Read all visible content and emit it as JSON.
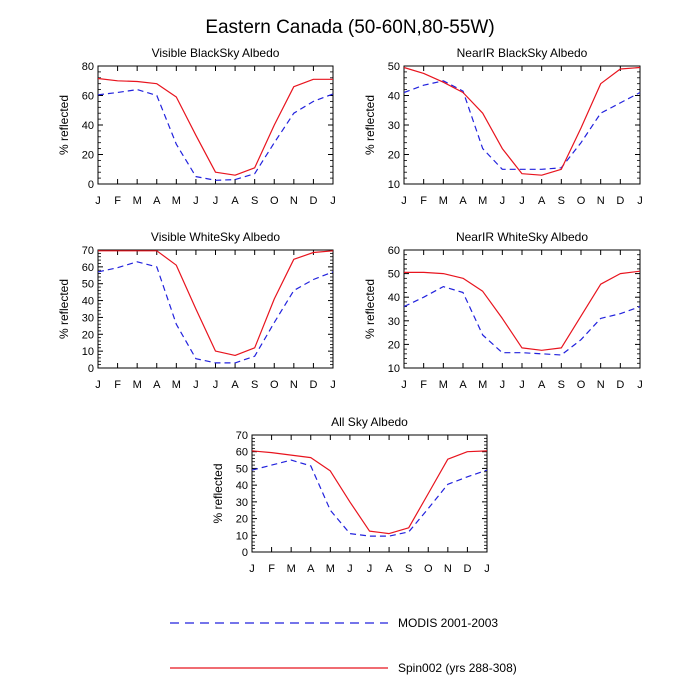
{
  "figure": {
    "title": "Eastern Canada (50-60N,80-55W)"
  },
  "legend": {
    "entries": [
      {
        "label": "MODIS 2001-2003",
        "color": "#2222dd",
        "dashed": true
      },
      {
        "label": "Spin002 (yrs 288-308)",
        "color": "#e8141e",
        "dashed": false
      }
    ]
  },
  "chart_data": [
    {
      "type": "line",
      "title": "Visible BlackSky Albedo",
      "ylabel": "% reflected",
      "x": [
        "J",
        "F",
        "M",
        "A",
        "M",
        "J",
        "J",
        "A",
        "S",
        "O",
        "N",
        "D",
        "J"
      ],
      "ylim": [
        0,
        80
      ],
      "yticks": [
        0,
        20,
        40,
        60,
        80
      ],
      "series": [
        {
          "name": "MODIS 2001-2003",
          "values": [
            60.5,
            62,
            64,
            60,
            27,
            5,
            2.5,
            3,
            7,
            28,
            48,
            56,
            61
          ]
        },
        {
          "name": "Spin002 (yrs 288-308)",
          "values": [
            71.5,
            70,
            69.5,
            68,
            59,
            33,
            8,
            6,
            11,
            40,
            66,
            71,
            71
          ]
        }
      ]
    },
    {
      "type": "line",
      "title": "NearIR BlackSky Albedo",
      "ylabel": "% reflected",
      "x": [
        "J",
        "F",
        "M",
        "A",
        "M",
        "J",
        "J",
        "A",
        "S",
        "O",
        "N",
        "D",
        "J"
      ],
      "ylim": [
        10,
        50
      ],
      "yticks": [
        10,
        20,
        30,
        40,
        50
      ],
      "series": [
        {
          "name": "MODIS 2001-2003",
          "values": [
            41,
            43.5,
            45,
            41.5,
            22,
            15,
            15,
            15,
            15.5,
            24,
            34,
            37.5,
            41
          ]
        },
        {
          "name": "Spin002 (yrs 288-308)",
          "values": [
            49.5,
            47.5,
            44.5,
            41,
            34,
            22,
            13.5,
            13,
            15,
            29,
            44,
            49,
            49.5
          ]
        }
      ]
    },
    {
      "type": "line",
      "title": "Visible WhiteSky Albedo",
      "ylabel": "% reflected",
      "x": [
        "J",
        "F",
        "M",
        "A",
        "M",
        "J",
        "J",
        "A",
        "S",
        "O",
        "N",
        "D",
        "J"
      ],
      "ylim": [
        0,
        70
      ],
      "yticks": [
        0,
        10,
        20,
        30,
        40,
        50,
        60,
        70
      ],
      "series": [
        {
          "name": "MODIS 2001-2003",
          "values": [
            57,
            59.5,
            63,
            60,
            26,
            5.5,
            3,
            3,
            7,
            27,
            46,
            52.5,
            57
          ]
        },
        {
          "name": "Spin002 (yrs 288-308)",
          "values": [
            69.5,
            69.5,
            69.5,
            69.5,
            61,
            35,
            10,
            7.5,
            12,
            41,
            64.5,
            68.5,
            69.5
          ]
        }
      ]
    },
    {
      "type": "line",
      "title": "NearIR WhiteSky Albedo",
      "ylabel": "% reflected",
      "x": [
        "J",
        "F",
        "M",
        "A",
        "M",
        "J",
        "J",
        "A",
        "S",
        "O",
        "N",
        "D",
        "J"
      ],
      "ylim": [
        10,
        60
      ],
      "yticks": [
        10,
        20,
        30,
        40,
        50,
        60
      ],
      "series": [
        {
          "name": "MODIS 2001-2003",
          "values": [
            36,
            40,
            44.5,
            42,
            24,
            16.5,
            16.5,
            16,
            15.5,
            22,
            31,
            33,
            36
          ]
        },
        {
          "name": "Spin002 (yrs 288-308)",
          "values": [
            50.5,
            50.5,
            50,
            48,
            42.5,
            31,
            18.5,
            17.5,
            18.5,
            32,
            45.5,
            50,
            51
          ]
        }
      ]
    },
    {
      "type": "line",
      "title": "All Sky Albedo",
      "ylabel": "% reflected",
      "x": [
        "J",
        "F",
        "M",
        "A",
        "M",
        "J",
        "J",
        "A",
        "S",
        "O",
        "N",
        "D",
        "J"
      ],
      "ylim": [
        0,
        70
      ],
      "yticks": [
        0,
        10,
        20,
        30,
        40,
        50,
        60,
        70
      ],
      "series": [
        {
          "name": "MODIS 2001-2003",
          "values": [
            49,
            52,
            55,
            51.5,
            25,
            11,
            9.5,
            9.5,
            12,
            26,
            40.5,
            45,
            49
          ]
        },
        {
          "name": "Spin002 (yrs 288-308)",
          "values": [
            60.5,
            59.5,
            58,
            56.5,
            48.5,
            30,
            12.5,
            11,
            14.5,
            35,
            55.5,
            60,
            60.5
          ]
        }
      ]
    }
  ]
}
